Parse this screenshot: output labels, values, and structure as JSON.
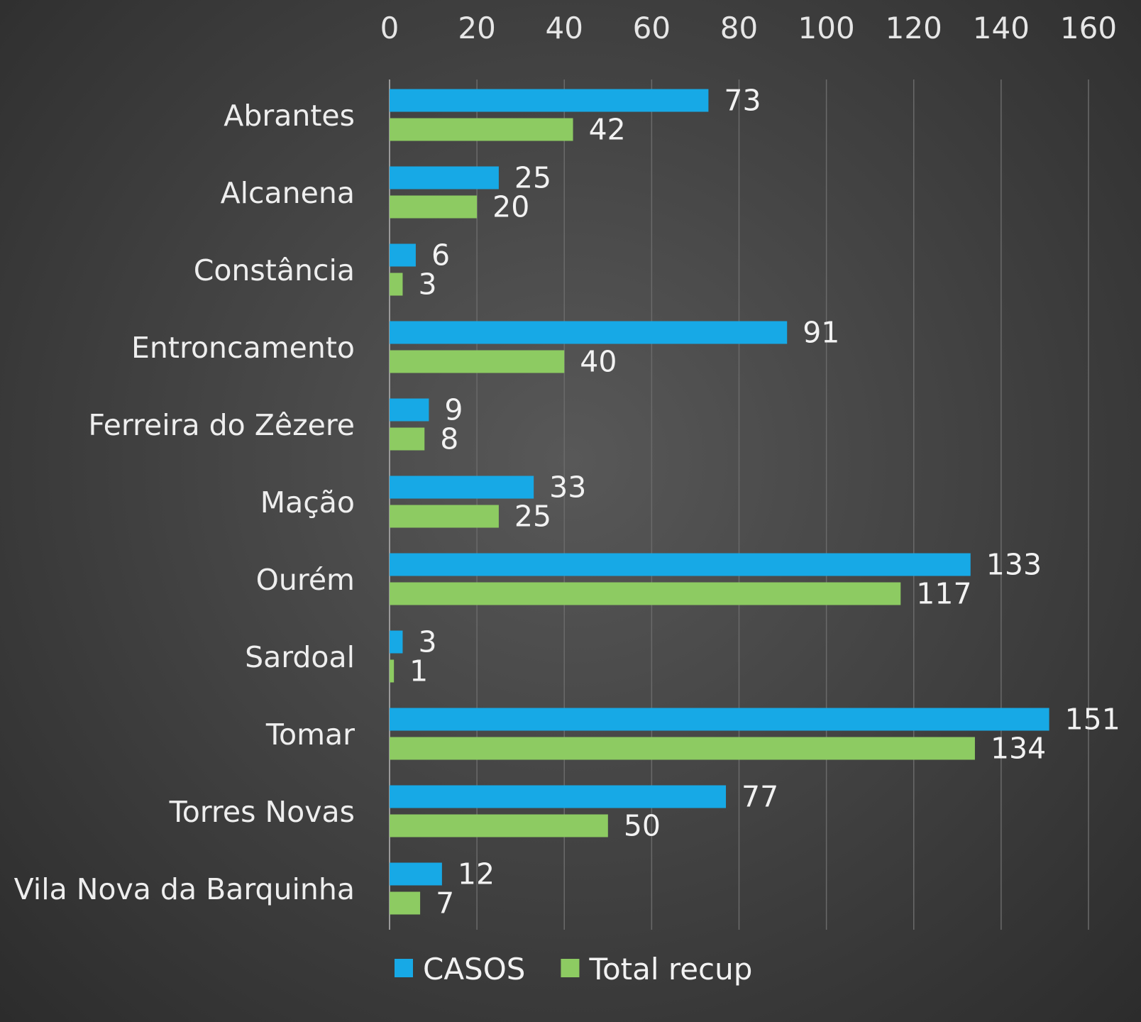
{
  "chart_data": {
    "type": "bar",
    "orientation": "horizontal",
    "x_axis_position": "top",
    "grid": true,
    "legend_position": "bottom",
    "xlim": [
      0,
      160
    ],
    "ticks": [
      "0",
      "20",
      "40",
      "60",
      "80",
      "100",
      "120",
      "140",
      "160"
    ],
    "categories": [
      "Abrantes",
      "Alcanena",
      "Constância",
      "Entroncamento",
      "Ferreira do Zêzere",
      "Mação",
      "Ourém",
      "Sardoal",
      "Tomar",
      "Torres Novas",
      "Vila Nova da Barquinha"
    ],
    "series": [
      {
        "name": "CASOS",
        "color": "#17a9e6",
        "values": [
          73,
          25,
          6,
          91,
          9,
          33,
          133,
          3,
          151,
          77,
          12
        ]
      },
      {
        "name": "Total recup",
        "color": "#8dcb62",
        "values": [
          42,
          20,
          3,
          40,
          8,
          25,
          117,
          1,
          134,
          50,
          7
        ]
      }
    ]
  }
}
